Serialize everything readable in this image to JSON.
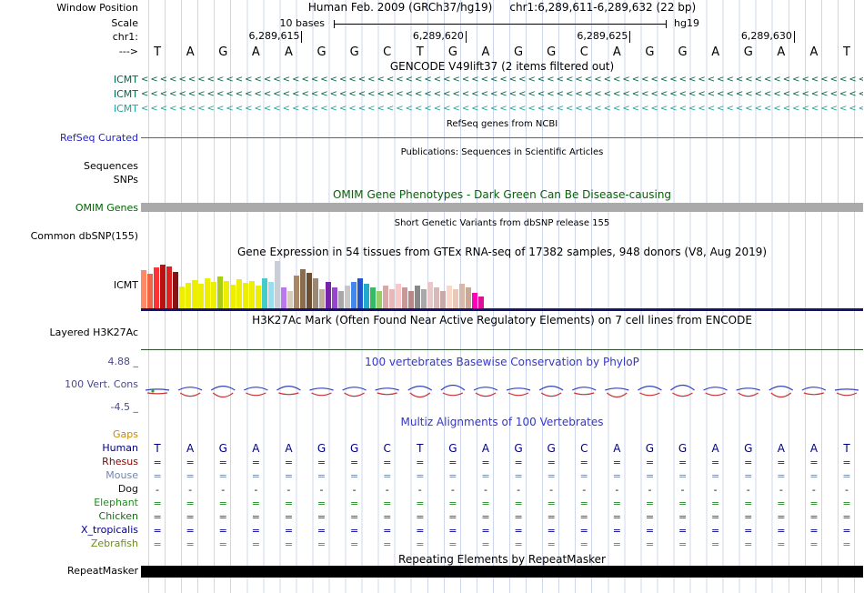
{
  "colors": {
    "grid": "#ccd7ec",
    "omim_green": "#006400",
    "omim_bar": "#aaaaaa",
    "track_blue": "#3535cc",
    "cons_gray": "#4a4a88",
    "gaps_orange": "#cc8800",
    "refseq_label": "#2222cc",
    "refseq_line": "#5a5aa5",
    "gtex_baseline": "#14146e",
    "h3k27ac_line": "#2f4f2f",
    "repeat_bar": "#000000",
    "phylop_pos": "#3344bb",
    "phylop_neg": "#cc3333",
    "phylop_dot": "#22aa22"
  },
  "meta": {
    "window_position_label": "Window Position",
    "window_position_value": "Human Feb. 2009 (GRCh37/hg19)     chr1:6,289,611-6,289,632 (22 bp)",
    "scale_label": "Scale",
    "scale_value": "10 bases",
    "assembly": "hg19",
    "chrom_label": "chr1:",
    "strand_arrow": "--->"
  },
  "ruler": {
    "ticks": [
      {
        "label": "6,289,615",
        "base_index": 5
      },
      {
        "label": "6,289,620",
        "base_index": 10
      },
      {
        "label": "6,289,625",
        "base_index": 15
      },
      {
        "label": "6,289,630",
        "base_index": 20
      }
    ]
  },
  "sequence": [
    "T",
    "A",
    "G",
    "A",
    "A",
    "G",
    "G",
    "C",
    "T",
    "G",
    "A",
    "G",
    "G",
    "C",
    "A",
    "G",
    "G",
    "A",
    "G",
    "A",
    "A",
    "T"
  ],
  "gencode": {
    "title": "GENCODE V49lift37 (2 items filtered out)",
    "transcripts": [
      {
        "label": "ICMT",
        "color": "#00664d",
        "arrow": "<"
      },
      {
        "label": "ICMT",
        "color": "#00664d",
        "arrow": "<"
      },
      {
        "label": "ICMT",
        "color": "#1fa39b",
        "arrow": "<"
      }
    ]
  },
  "refseq": {
    "title": "RefSeq genes from NCBI",
    "label": "RefSeq Curated"
  },
  "publications": {
    "title": "Publications: Sequences in Scientific Articles",
    "rows": [
      "Sequences",
      "SNPs"
    ]
  },
  "omim": {
    "title": "OMIM Gene Phenotypes - Dark Green Can Be Disease-causing",
    "label": "OMIM Genes"
  },
  "dbsnp": {
    "title": "Short Genetic Variants from dbSNP release 155",
    "label": "Common dbSNP(155)"
  },
  "gtex": {
    "title": "Gene Expression in 54 tissues from GTEx RNA-seq of 17382 samples, 948 donors (V8, Aug 2019)",
    "label": "ICMT",
    "bars": [
      [
        "#FF8866",
        42
      ],
      [
        "#EE6644",
        38
      ],
      [
        "#FF3333",
        45
      ],
      [
        "#BB1111",
        48
      ],
      [
        "#DD2222",
        46
      ],
      [
        "#881111",
        40
      ],
      [
        "#EEEE00",
        24
      ],
      [
        "#EEEE00",
        28
      ],
      [
        "#EEEE00",
        31
      ],
      [
        "#EEEE00",
        27
      ],
      [
        "#EEEE00",
        33
      ],
      [
        "#EEEE00",
        29
      ],
      [
        "#AACC11",
        35
      ],
      [
        "#EEEE00",
        30
      ],
      [
        "#EEEE00",
        26
      ],
      [
        "#EEEE00",
        32
      ],
      [
        "#EEEE00",
        28
      ],
      [
        "#EEEE00",
        30
      ],
      [
        "#EEEE00",
        25
      ],
      [
        "#44CCCC",
        33
      ],
      [
        "#99DDEE",
        29
      ],
      [
        "#C8CDD6",
        52
      ],
      [
        "#BB77EE",
        23
      ],
      [
        "#D8CCBB",
        19
      ],
      [
        "#AA8866",
        36
      ],
      [
        "#8B6D4E",
        43
      ],
      [
        "#6B4F33",
        39
      ],
      [
        "#9A8876",
        33
      ],
      [
        "#C0AE9C",
        21
      ],
      [
        "#7722AA",
        29
      ],
      [
        "#9944CC",
        23
      ],
      [
        "#A8A8A8",
        19
      ],
      [
        "#C8C8C8",
        25
      ],
      [
        "#4488EE",
        29
      ],
      [
        "#2255CC",
        33
      ],
      [
        "#22AACC",
        27
      ],
      [
        "#33BB66",
        23
      ],
      [
        "#99CC66",
        19
      ],
      [
        "#D8A8A8",
        25
      ],
      [
        "#E8B8B8",
        21
      ],
      [
        "#F8C8C8",
        27
      ],
      [
        "#C89898",
        23
      ],
      [
        "#B88888",
        19
      ],
      [
        "#888888",
        25
      ],
      [
        "#A8A8A8",
        21
      ],
      [
        "#E8C8C8",
        29
      ],
      [
        "#D8B8B8",
        23
      ],
      [
        "#C8A8A8",
        19
      ],
      [
        "#F8D8C8",
        25
      ],
      [
        "#E8C8B8",
        21
      ],
      [
        "#D8B8A8",
        27
      ],
      [
        "#C8A898",
        23
      ],
      [
        "#FF00BB",
        17
      ],
      [
        "#DD1199",
        13
      ]
    ]
  },
  "h3k27ac": {
    "title": "H3K27Ac Mark (Often Found Near Active Regulatory Elements) on 7 cell lines from ENCODE",
    "label": "Layered H3K27Ac"
  },
  "phylop": {
    "title": "100 vertebrates Basewise Conservation by PhyloP",
    "label": "100 Vert. Cons",
    "max_label": "4.88 _",
    "min_label": "-4.5 _",
    "columns": [
      [
        1,
        1
      ],
      [
        3,
        4
      ],
      [
        4,
        5
      ],
      [
        3,
        3
      ],
      [
        4,
        2
      ],
      [
        2,
        3
      ],
      [
        3,
        4
      ],
      [
        2,
        2
      ],
      [
        4,
        5
      ],
      [
        5,
        3
      ],
      [
        3,
        4
      ],
      [
        2,
        3
      ],
      [
        4,
        4
      ],
      [
        3,
        2
      ],
      [
        2,
        5
      ],
      [
        4,
        3
      ],
      [
        5,
        4
      ],
      [
        3,
        3
      ],
      [
        2,
        4
      ],
      [
        4,
        5
      ],
      [
        3,
        2
      ],
      [
        1,
        3
      ]
    ]
  },
  "multiz": {
    "title": "Multiz Alignments of 100 Vertebrates",
    "gaps_label": "Gaps",
    "species": [
      {
        "name": "Human",
        "color": "#000080",
        "type": "sequence"
      },
      {
        "name": "Rhesus",
        "color": "#8B0000",
        "mark": "="
      },
      {
        "name": "Mouse",
        "color": "#7086AD",
        "mark": "="
      },
      {
        "name": "Dog",
        "color": "#111111",
        "mark": "-"
      },
      {
        "name": "Elephant",
        "color": "#228B22",
        "mark": "="
      },
      {
        "name": "Chicken",
        "color": "#156B15",
        "mark": "="
      },
      {
        "name": "X_tropicalis",
        "color": "#00008B",
        "mark": "="
      },
      {
        "name": "Zebrafish",
        "color": "#6B8E23",
        "mark": "="
      }
    ]
  },
  "repeatmasker": {
    "title": "Repeating Elements by RepeatMasker",
    "label": "RepeatMasker"
  }
}
